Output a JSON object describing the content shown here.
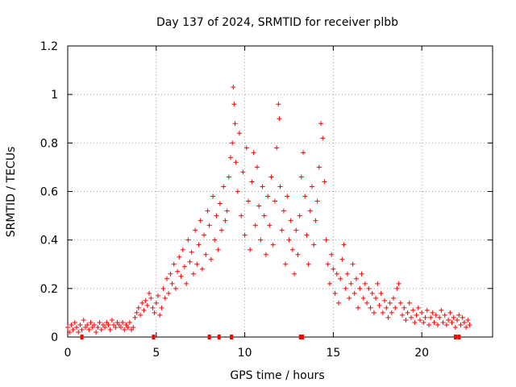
{
  "chart_data": {
    "type": "scatter",
    "title": "Day 137 of 2024, SRMTID for receiver plbb",
    "xlabel": "GPS time / hours",
    "ylabel": "SRMTID / TECUs",
    "xlim": [
      0,
      24
    ],
    "ylim": [
      0,
      1.2
    ],
    "xticks": [
      0,
      5,
      10,
      15,
      20
    ],
    "xtick_labels": [
      "0",
      "5",
      "10",
      "15",
      "20"
    ],
    "yticks": [
      0,
      0.2,
      0.4,
      0.6,
      0.8,
      1.0,
      1.2
    ],
    "ytick_labels": [
      "0",
      "0.2",
      "0.4",
      "0.6",
      "0.8",
      "1",
      "1.2"
    ],
    "grid": true,
    "marker": "+",
    "series": [
      {
        "name": "SRMTID",
        "color": "#ff0000",
        "points": [
          [
            0.0,
            0.04
          ],
          [
            0.1,
            0.02
          ],
          [
            0.2,
            0.05
          ],
          [
            0.3,
            0.03
          ],
          [
            0.4,
            0.06
          ],
          [
            0.5,
            0.04
          ],
          [
            0.6,
            0.02
          ],
          [
            0.7,
            0.05
          ],
          [
            0.8,
            0.03
          ],
          [
            0.9,
            0.07
          ],
          [
            1.0,
            0.04
          ],
          [
            1.1,
            0.05
          ],
          [
            1.2,
            0.03
          ],
          [
            1.3,
            0.06
          ],
          [
            1.4,
            0.04
          ],
          [
            1.5,
            0.05
          ],
          [
            1.6,
            0.02
          ],
          [
            1.7,
            0.04
          ],
          [
            1.8,
            0.06
          ],
          [
            1.9,
            0.03
          ],
          [
            2.0,
            0.05
          ],
          [
            2.1,
            0.04
          ],
          [
            2.2,
            0.06
          ],
          [
            2.3,
            0.05
          ],
          [
            2.4,
            0.03
          ],
          [
            2.5,
            0.07
          ],
          [
            2.6,
            0.05
          ],
          [
            2.7,
            0.04
          ],
          [
            2.8,
            0.06
          ],
          [
            2.9,
            0.05
          ],
          [
            3.0,
            0.04
          ],
          [
            3.1,
            0.06
          ],
          [
            3.2,
            0.03
          ],
          [
            3.3,
            0.05
          ],
          [
            3.4,
            0.04
          ],
          [
            3.5,
            0.06
          ],
          [
            3.6,
            0.03
          ],
          [
            3.7,
            0.04
          ],
          [
            3.8,
            0.08
          ],
          [
            3.9,
            0.1
          ],
          [
            4.0,
            0.12
          ],
          [
            4.1,
            0.09
          ],
          [
            4.2,
            0.14
          ],
          [
            4.3,
            0.11
          ],
          [
            4.4,
            0.15
          ],
          [
            4.5,
            0.13
          ],
          [
            4.6,
            0.18
          ],
          [
            4.7,
            0.16
          ],
          [
            4.8,
            0.12
          ],
          [
            4.9,
            0.1
          ],
          [
            5.0,
            0.14
          ],
          [
            5.1,
            0.17
          ],
          [
            5.2,
            0.09
          ],
          [
            5.3,
            0.12
          ],
          [
            5.4,
            0.2
          ],
          [
            5.5,
            0.16
          ],
          [
            5.6,
            0.24
          ],
          [
            5.7,
            0.18
          ],
          [
            5.8,
            0.26
          ],
          [
            5.9,
            0.22
          ],
          [
            6.0,
            0.3
          ],
          [
            6.1,
            0.2
          ],
          [
            6.2,
            0.27
          ],
          [
            6.3,
            0.33
          ],
          [
            6.4,
            0.25
          ],
          [
            6.5,
            0.36
          ],
          [
            6.6,
            0.29
          ],
          [
            6.7,
            0.22
          ],
          [
            6.8,
            0.4
          ],
          [
            6.9,
            0.31
          ],
          [
            7.0,
            0.35
          ],
          [
            7.1,
            0.26
          ],
          [
            7.2,
            0.44
          ],
          [
            7.3,
            0.3
          ],
          [
            7.4,
            0.38
          ],
          [
            7.5,
            0.48
          ],
          [
            7.6,
            0.28
          ],
          [
            7.7,
            0.42
          ],
          [
            7.8,
            0.34
          ],
          [
            7.9,
            0.52
          ],
          [
            8.0,
            0.46
          ],
          [
            8.1,
            0.32
          ],
          [
            8.2,
            0.58
          ],
          [
            8.3,
            0.4
          ],
          [
            8.4,
            0.5
          ],
          [
            8.5,
            0.36
          ],
          [
            8.6,
            0.55
          ],
          [
            8.7,
            0.44
          ],
          [
            8.8,
            0.62
          ],
          [
            8.9,
            0.48
          ],
          [
            9.0,
            0.52
          ],
          [
            9.1,
            0.66
          ],
          [
            9.2,
            0.74
          ],
          [
            9.3,
            0.8
          ],
          [
            9.35,
            1.03
          ],
          [
            9.4,
            0.96
          ],
          [
            9.45,
            0.88
          ],
          [
            9.5,
            0.72
          ],
          [
            9.6,
            0.6
          ],
          [
            9.7,
            0.84
          ],
          [
            9.8,
            0.5
          ],
          [
            9.9,
            0.68
          ],
          [
            10.0,
            0.42
          ],
          [
            10.1,
            0.78
          ],
          [
            10.2,
            0.56
          ],
          [
            10.3,
            0.36
          ],
          [
            10.4,
            0.64
          ],
          [
            10.5,
            0.76
          ],
          [
            10.6,
            0.46
          ],
          [
            10.7,
            0.7
          ],
          [
            10.8,
            0.54
          ],
          [
            10.9,
            0.4
          ],
          [
            11.0,
            0.62
          ],
          [
            11.1,
            0.5
          ],
          [
            11.2,
            0.34
          ],
          [
            11.3,
            0.58
          ],
          [
            11.4,
            0.46
          ],
          [
            11.5,
            0.66
          ],
          [
            11.6,
            0.38
          ],
          [
            11.7,
            0.56
          ],
          [
            11.8,
            0.78
          ],
          [
            11.9,
            0.96
          ],
          [
            11.95,
            0.9
          ],
          [
            12.0,
            0.62
          ],
          [
            12.1,
            0.44
          ],
          [
            12.2,
            0.52
          ],
          [
            12.3,
            0.3
          ],
          [
            12.4,
            0.58
          ],
          [
            12.5,
            0.4
          ],
          [
            12.6,
            0.48
          ],
          [
            12.7,
            0.36
          ],
          [
            12.8,
            0.26
          ],
          [
            12.9,
            0.44
          ],
          [
            13.0,
            0.34
          ],
          [
            13.1,
            0.5
          ],
          [
            13.2,
            0.66
          ],
          [
            13.3,
            0.76
          ],
          [
            13.4,
            0.58
          ],
          [
            13.5,
            0.42
          ],
          [
            13.6,
            0.3
          ],
          [
            13.7,
            0.52
          ],
          [
            13.8,
            0.62
          ],
          [
            13.9,
            0.38
          ],
          [
            14.0,
            0.48
          ],
          [
            14.1,
            0.56
          ],
          [
            14.2,
            0.7
          ],
          [
            14.3,
            0.88
          ],
          [
            14.4,
            0.82
          ],
          [
            14.5,
            0.64
          ],
          [
            14.6,
            0.4
          ],
          [
            14.7,
            0.3
          ],
          [
            14.8,
            0.22
          ],
          [
            14.9,
            0.34
          ],
          [
            15.0,
            0.28
          ],
          [
            15.1,
            0.18
          ],
          [
            15.2,
            0.26
          ],
          [
            15.3,
            0.14
          ],
          [
            15.4,
            0.24
          ],
          [
            15.5,
            0.32
          ],
          [
            15.6,
            0.38
          ],
          [
            15.7,
            0.2
          ],
          [
            15.8,
            0.26
          ],
          [
            15.9,
            0.16
          ],
          [
            16.0,
            0.22
          ],
          [
            16.1,
            0.3
          ],
          [
            16.2,
            0.18
          ],
          [
            16.3,
            0.24
          ],
          [
            16.4,
            0.12
          ],
          [
            16.5,
            0.2
          ],
          [
            16.6,
            0.26
          ],
          [
            16.7,
            0.16
          ],
          [
            16.8,
            0.22
          ],
          [
            16.9,
            0.14
          ],
          [
            17.0,
            0.2
          ],
          [
            17.1,
            0.12
          ],
          [
            17.2,
            0.18
          ],
          [
            17.3,
            0.1
          ],
          [
            17.4,
            0.16
          ],
          [
            17.5,
            0.22
          ],
          [
            17.6,
            0.13
          ],
          [
            17.7,
            0.18
          ],
          [
            17.8,
            0.1
          ],
          [
            17.9,
            0.15
          ],
          [
            18.0,
            0.12
          ],
          [
            18.1,
            0.08
          ],
          [
            18.2,
            0.14
          ],
          [
            18.3,
            0.1
          ],
          [
            18.4,
            0.16
          ],
          [
            18.5,
            0.12
          ],
          [
            18.6,
            0.2
          ],
          [
            18.7,
            0.22
          ],
          [
            18.8,
            0.14
          ],
          [
            18.9,
            0.09
          ],
          [
            19.0,
            0.12
          ],
          [
            19.1,
            0.07
          ],
          [
            19.2,
            0.1
          ],
          [
            19.3,
            0.14
          ],
          [
            19.4,
            0.08
          ],
          [
            19.5,
            0.11
          ],
          [
            19.6,
            0.06
          ],
          [
            19.7,
            0.09
          ],
          [
            19.8,
            0.12
          ],
          [
            19.9,
            0.07
          ],
          [
            20.0,
            0.1
          ],
          [
            20.1,
            0.06
          ],
          [
            20.2,
            0.08
          ],
          [
            20.3,
            0.11
          ],
          [
            20.4,
            0.05
          ],
          [
            20.5,
            0.08
          ],
          [
            20.6,
            0.1
          ],
          [
            20.7,
            0.06
          ],
          [
            20.8,
            0.09
          ],
          [
            20.9,
            0.05
          ],
          [
            21.0,
            0.08
          ],
          [
            21.1,
            0.11
          ],
          [
            21.2,
            0.06
          ],
          [
            21.3,
            0.09
          ],
          [
            21.4,
            0.05
          ],
          [
            21.5,
            0.07
          ],
          [
            21.6,
            0.1
          ],
          [
            21.7,
            0.06
          ],
          [
            21.8,
            0.08
          ],
          [
            21.9,
            0.04
          ],
          [
            22.0,
            0.07
          ],
          [
            22.1,
            0.09
          ],
          [
            22.2,
            0.05
          ],
          [
            22.3,
            0.08
          ],
          [
            22.4,
            0.06
          ],
          [
            22.5,
            0.04
          ],
          [
            22.6,
            0.07
          ],
          [
            22.7,
            0.05
          ]
        ]
      }
    ],
    "zero_points_x": [
      0.8,
      4.85,
      8.0,
      8.55,
      9.25,
      13.15,
      13.25,
      21.9,
      22.1
    ]
  }
}
